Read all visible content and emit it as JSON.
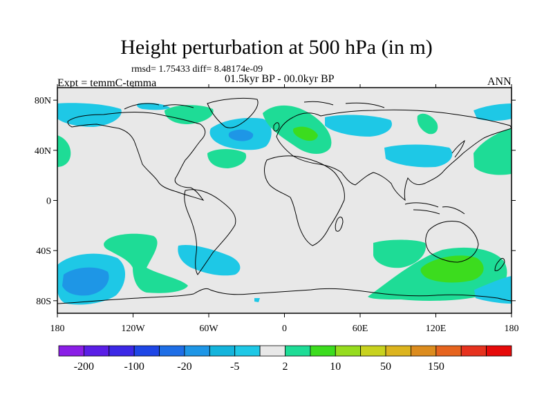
{
  "title": "Height perturbation at 500 hPa (in m)",
  "stats_text": "rmsd= 1.75433 diff= 8.48174e-09",
  "period_text": "01.5kyr BP - 00.0kyr BP",
  "expt_text": "Expt = temmC-temma",
  "season": "ANN",
  "map": {
    "lat_ticks": [
      {
        "value": 80,
        "label": "80N"
      },
      {
        "value": 40,
        "label": "40N"
      },
      {
        "value": 0,
        "label": "0"
      },
      {
        "value": -40,
        "label": "40S"
      },
      {
        "value": -80,
        "label": "80S"
      }
    ],
    "lon_ticks": [
      {
        "value": -180,
        "label": "180"
      },
      {
        "value": -120,
        "label": "120W"
      },
      {
        "value": -60,
        "label": "60W"
      },
      {
        "value": 0,
        "label": "0"
      },
      {
        "value": 60,
        "label": "60E"
      },
      {
        "value": 120,
        "label": "120E"
      },
      {
        "value": 180,
        "label": "180"
      }
    ],
    "lat_range": [
      -90,
      90
    ],
    "lon_range": [
      -180,
      180
    ],
    "background_color": "#e8e8e8"
  },
  "colorbar": {
    "colors": [
      "#8a1ee6",
      "#5a1ee6",
      "#3c28e6",
      "#1e46e6",
      "#1e6ee6",
      "#1e96e6",
      "#14b4dc",
      "#1ec8e6",
      "#e8e8e8",
      "#1edc96",
      "#3cdc1e",
      "#96dc1e",
      "#c8d21e",
      "#dcb41e",
      "#dc8c1e",
      "#e6641e",
      "#e6321e",
      "#e60a0a"
    ],
    "labels": [
      {
        "boundary": 1,
        "text": "-200"
      },
      {
        "boundary": 3,
        "text": "-100"
      },
      {
        "boundary": 5,
        "text": "-20"
      },
      {
        "boundary": 7,
        "text": "-5"
      },
      {
        "boundary": 9,
        "text": "2"
      },
      {
        "boundary": 11,
        "text": "10"
      },
      {
        "boundary": 13,
        "text": "50"
      },
      {
        "boundary": 15,
        "text": "150"
      }
    ]
  },
  "anomaly_colors": {
    "neg_light": "#1ec8e6",
    "neg_mid": "#14b4dc",
    "neg_dark": "#1e96e6",
    "pos_light": "#1edc96",
    "pos_mid": "#3cdc1e"
  }
}
